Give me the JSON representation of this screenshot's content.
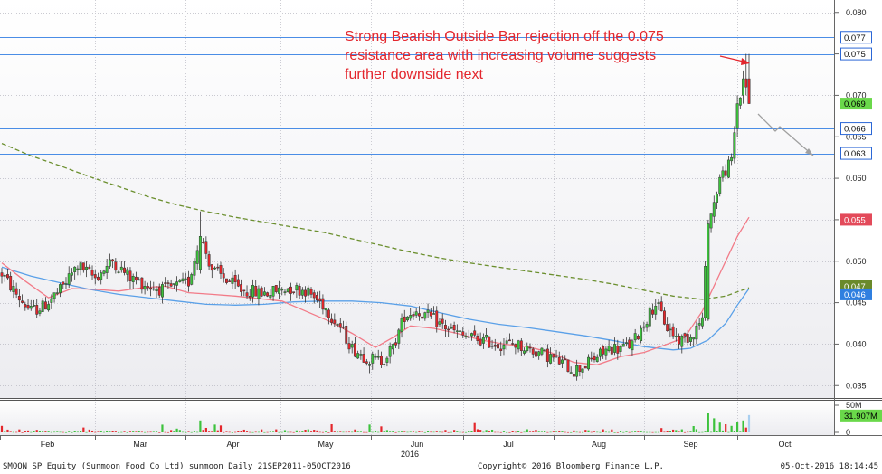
{
  "chart_data": {
    "type": "candlestick",
    "title": "",
    "annotation": "Strong Bearish Outside Bar rejection off the 0.075 resistance area with increasing volume suggests further downside next",
    "annotation_lines": [
      "Strong Bearish Outside Bar rejection off the 0.075",
      "resistance area with increasing volume suggests",
      "further downside next"
    ],
    "y_axis": {
      "ylim": [
        0.0335,
        0.0815
      ],
      "ticks": [
        "0.080",
        "0.075",
        "0.070",
        "0.065",
        "0.060",
        "0.055",
        "0.050",
        "0.045",
        "0.040",
        "0.035"
      ],
      "position": "right"
    },
    "x_axis": {
      "months": [
        "Feb",
        "Mar",
        "Apr",
        "May",
        "Jun",
        "Jul",
        "Aug",
        "Sep",
        "Oct"
      ],
      "year_label": "2016"
    },
    "volume_axis": {
      "ticks": [
        "50M",
        "0"
      ],
      "last_volume_label": "31.907M"
    },
    "horizontal_levels": [
      0.077,
      0.075,
      0.066,
      0.063
    ],
    "price_tags": [
      {
        "label": "0.077",
        "value": 0.077,
        "color": "#2b67d6",
        "style": "outline"
      },
      {
        "label": "0.075",
        "value": 0.075,
        "color": "#2b67d6",
        "style": "outline"
      },
      {
        "label": "0.069",
        "value": 0.069,
        "color": "#6ad84a",
        "style": "filled"
      },
      {
        "label": "0.066",
        "value": 0.066,
        "color": "#2b67d6",
        "style": "outline"
      },
      {
        "label": "0.063",
        "value": 0.063,
        "color": "#2b67d6",
        "style": "outline"
      },
      {
        "label": "0.055",
        "value": 0.055,
        "color": "#e34a5a",
        "style": "filled"
      },
      {
        "label": "0.047",
        "value": 0.047,
        "color": "#6a8a2a",
        "style": "filled"
      },
      {
        "label": "0.046",
        "value": 0.046,
        "color": "#2f7fe0",
        "style": "filled"
      }
    ],
    "series": [
      {
        "name": "",
        "type": "moving_average",
        "color": "#5aa0e8",
        "points": [
          [
            0,
            0.0493
          ],
          [
            10,
            0.0482
          ],
          [
            20,
            0.0474
          ],
          [
            30,
            0.0466
          ],
          [
            40,
            0.046
          ],
          [
            50,
            0.0456
          ],
          [
            60,
            0.0452
          ],
          [
            70,
            0.0448
          ],
          [
            80,
            0.0447
          ],
          [
            90,
            0.0448
          ],
          [
            100,
            0.0451
          ],
          [
            110,
            0.0452
          ],
          [
            120,
            0.0452
          ],
          [
            130,
            0.045
          ],
          [
            140,
            0.0446
          ],
          [
            150,
            0.0438
          ],
          [
            160,
            0.043
          ],
          [
            170,
            0.0424
          ],
          [
            180,
            0.042
          ],
          [
            190,
            0.0415
          ],
          [
            200,
            0.041
          ],
          [
            210,
            0.0404
          ],
          [
            220,
            0.0397
          ],
          [
            230,
            0.0393
          ],
          [
            236,
            0.0395
          ],
          [
            242,
            0.0405
          ],
          [
            248,
            0.0425
          ],
          [
            252,
            0.0447
          ],
          [
            256,
            0.0467
          ]
        ]
      },
      {
        "name": "",
        "type": "moving_average",
        "color": "#f27b88",
        "points": [
          [
            0,
            0.0498
          ],
          [
            8,
            0.0476
          ],
          [
            16,
            0.0456
          ],
          [
            24,
            0.0467
          ],
          [
            32,
            0.0466
          ],
          [
            40,
            0.0464
          ],
          [
            48,
            0.0468
          ],
          [
            56,
            0.047
          ],
          [
            64,
            0.0462
          ],
          [
            72,
            0.046
          ],
          [
            80,
            0.0458
          ],
          [
            88,
            0.0455
          ],
          [
            96,
            0.0452
          ],
          [
            104,
            0.044
          ],
          [
            112,
            0.0428
          ],
          [
            120,
            0.0413
          ],
          [
            128,
            0.0396
          ],
          [
            134,
            0.0408
          ],
          [
            140,
            0.0422
          ],
          [
            148,
            0.0419
          ],
          [
            156,
            0.0413
          ],
          [
            164,
            0.0405
          ],
          [
            172,
            0.04
          ],
          [
            180,
            0.0397
          ],
          [
            188,
            0.039
          ],
          [
            196,
            0.0378
          ],
          [
            204,
            0.0375
          ],
          [
            212,
            0.0385
          ],
          [
            220,
            0.039
          ],
          [
            228,
            0.04
          ],
          [
            234,
            0.0408
          ],
          [
            240,
            0.044
          ],
          [
            246,
            0.0485
          ],
          [
            252,
            0.053
          ],
          [
            256,
            0.0553
          ]
        ]
      },
      {
        "name": "",
        "type": "moving_average",
        "color": "#6b8f2e",
        "dashed": true,
        "points": [
          [
            0,
            0.0642
          ],
          [
            10,
            0.0627
          ],
          [
            20,
            0.0615
          ],
          [
            30,
            0.0602
          ],
          [
            40,
            0.059
          ],
          [
            50,
            0.0578
          ],
          [
            60,
            0.0568
          ],
          [
            70,
            0.056
          ],
          [
            80,
            0.0553
          ],
          [
            90,
            0.0547
          ],
          [
            100,
            0.0541
          ],
          [
            110,
            0.0535
          ],
          [
            120,
            0.0527
          ],
          [
            130,
            0.0519
          ],
          [
            140,
            0.0511
          ],
          [
            150,
            0.0504
          ],
          [
            160,
            0.0498
          ],
          [
            170,
            0.0493
          ],
          [
            180,
            0.0488
          ],
          [
            190,
            0.0483
          ],
          [
            200,
            0.0478
          ],
          [
            210,
            0.0472
          ],
          [
            220,
            0.0465
          ],
          [
            230,
            0.0458
          ],
          [
            240,
            0.0454
          ],
          [
            248,
            0.0458
          ],
          [
            256,
            0.0468
          ]
        ]
      }
    ],
    "candles": [],
    "volume": []
  },
  "footer": {
    "left": "SMOON SP Equity (Sunmoon Food Co Ltd) sunmoon  Daily 21SEP2011-05OCT2016",
    "center": "Copyright© 2016 Bloomberg Finance L.P.",
    "right": "05-Oct-2016 18:14:45"
  },
  "colors": {
    "up": "#3cc23c",
    "down": "#e4262b",
    "grid": "#b9b9c2",
    "level_line": "#4a8de6",
    "annotation": "#e3262d",
    "projection_arrow": "#9a9a9a"
  }
}
